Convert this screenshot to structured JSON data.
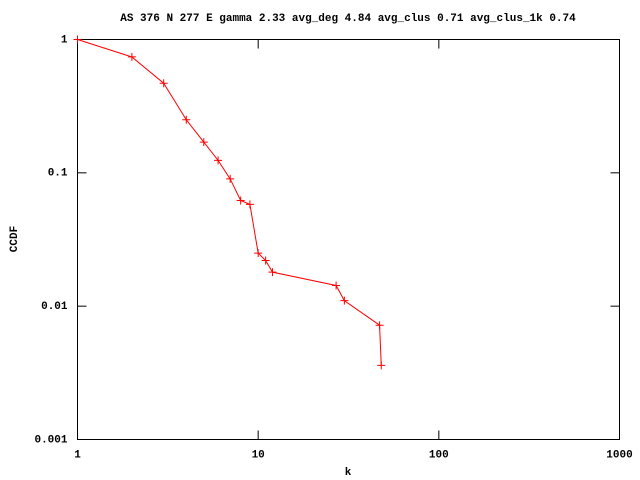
{
  "chart_data": {
    "type": "line",
    "title": "AS 376 N 277 E gamma 2.33 avg_deg 4.84 avg_clus 0.71 avg_clus_1k 0.74",
    "x_label": "k",
    "y_label": "CCDF",
    "x": [
      1,
      2,
      3,
      4,
      5,
      6,
      7,
      8,
      9,
      10,
      11,
      12,
      27,
      30,
      47,
      48
    ],
    "series": [
      {
        "color": "#ff0000",
        "values": [
          1,
          0.74,
          0.47,
          0.25,
          0.17,
          0.124,
          0.09,
          0.062,
          0.058,
          0.025,
          0.022,
          0.018,
          0.0143,
          0.011,
          0.0072,
          0.0036
        ]
      }
    ],
    "xlim": [
      1,
      1000
    ],
    "xticks": [
      1,
      10,
      100,
      1000
    ],
    "ylim": [
      0.001,
      1
    ],
    "yticks": [
      1,
      0.1,
      0.01,
      0.001
    ],
    "xscale": "log",
    "yscale": "log"
  }
}
